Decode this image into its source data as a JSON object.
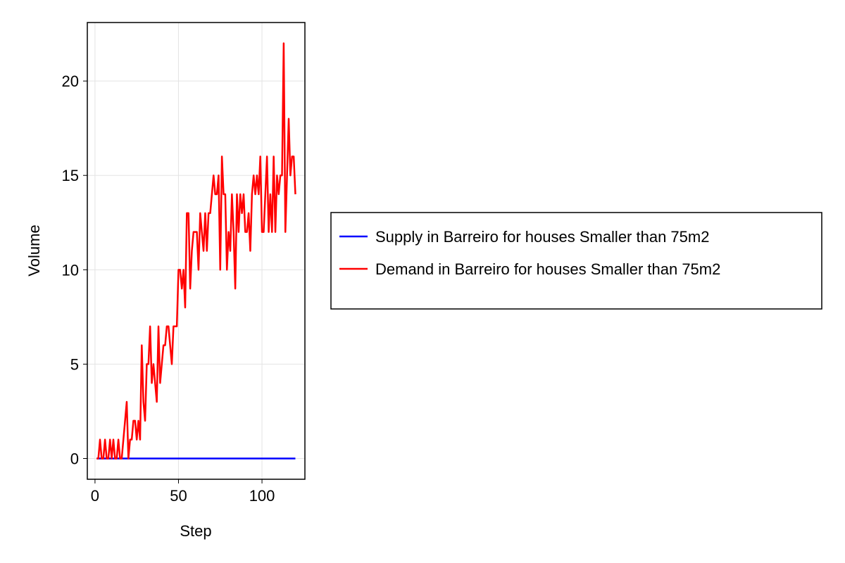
{
  "chart_data": {
    "type": "line",
    "x_label": "Step",
    "y_label": "Volume",
    "x": [
      1,
      2,
      3,
      4,
      5,
      6,
      7,
      8,
      9,
      10,
      11,
      12,
      13,
      14,
      15,
      16,
      17,
      18,
      19,
      20,
      21,
      22,
      23,
      24,
      25,
      26,
      27,
      28,
      29,
      30,
      31,
      32,
      33,
      34,
      35,
      36,
      37,
      38,
      39,
      40,
      41,
      42,
      43,
      44,
      45,
      46,
      47,
      48,
      49,
      50,
      51,
      52,
      53,
      54,
      55,
      56,
      57,
      58,
      59,
      60,
      61,
      62,
      63,
      64,
      65,
      66,
      67,
      68,
      69,
      70,
      71,
      72,
      73,
      74,
      75,
      76,
      77,
      78,
      79,
      80,
      81,
      82,
      83,
      84,
      85,
      86,
      87,
      88,
      89,
      90,
      91,
      92,
      93,
      94,
      95,
      96,
      97,
      98,
      99,
      100,
      101,
      102,
      103,
      104,
      105,
      106,
      107,
      108,
      109,
      110,
      111,
      112,
      113,
      114,
      115,
      116,
      117,
      118,
      119,
      120
    ],
    "series": [
      {
        "name": "Supply in Barreiro for houses Smaller than 75m2",
        "color": "#0000ff",
        "values": [
          0,
          0,
          0,
          0,
          0,
          0,
          0,
          0,
          0,
          0,
          0,
          0,
          0,
          0,
          0,
          0,
          0,
          0,
          0,
          0,
          0,
          0,
          0,
          0,
          0,
          0,
          0,
          0,
          0,
          0,
          0,
          0,
          0,
          0,
          0,
          0,
          0,
          0,
          0,
          0,
          0,
          0,
          0,
          0,
          0,
          0,
          0,
          0,
          0,
          0,
          0,
          0,
          0,
          0,
          0,
          0,
          0,
          0,
          0,
          0,
          0,
          0,
          0,
          0,
          0,
          0,
          0,
          0,
          0,
          0,
          0,
          0,
          0,
          0,
          0,
          0,
          0,
          0,
          0,
          0,
          0,
          0,
          0,
          0,
          0,
          0,
          0,
          0,
          0,
          0,
          0,
          0,
          0,
          0,
          0,
          0,
          0,
          0,
          0,
          0,
          0,
          0,
          0,
          0,
          0,
          0,
          0,
          0,
          0,
          0,
          0,
          0,
          0,
          0,
          0,
          0,
          0,
          0,
          0,
          0
        ]
      },
      {
        "name": "Demand in Barreiro for houses Smaller than 75m2",
        "color": "#ff0000",
        "values": [
          0,
          0,
          1,
          0,
          0,
          1,
          0,
          0,
          1,
          0,
          1,
          0,
          0,
          1,
          0,
          0,
          1,
          2,
          3,
          0,
          1,
          1,
          2,
          2,
          1,
          2,
          1,
          6,
          3,
          2,
          5,
          5,
          7,
          4,
          5,
          4,
          3,
          7,
          4,
          5,
          6,
          6,
          7,
          7,
          6,
          5,
          7,
          7,
          7,
          10,
          10,
          9,
          10,
          8,
          13,
          13,
          9,
          11,
          12,
          12,
          12,
          10,
          13,
          12,
          11,
          13,
          11,
          13,
          13,
          14,
          15,
          14,
          14,
          15,
          10,
          16,
          14,
          14,
          10,
          12,
          11,
          14,
          12,
          9,
          14,
          12,
          14,
          13,
          14,
          12,
          12,
          13,
          11,
          14,
          15,
          14,
          15,
          14,
          16,
          12,
          12,
          14,
          16,
          12,
          14,
          12,
          16,
          12,
          15,
          14,
          15,
          15,
          22,
          12,
          15,
          18,
          15,
          16,
          16,
          14
        ]
      }
    ],
    "xlim": [
      -4.6,
      125.7
    ],
    "xticks": [
      0,
      50,
      100
    ],
    "ylim": [
      -1.1,
      23.1
    ],
    "yticks": [
      0,
      5,
      10,
      15,
      20
    ],
    "grid": true,
    "legend": "right"
  }
}
